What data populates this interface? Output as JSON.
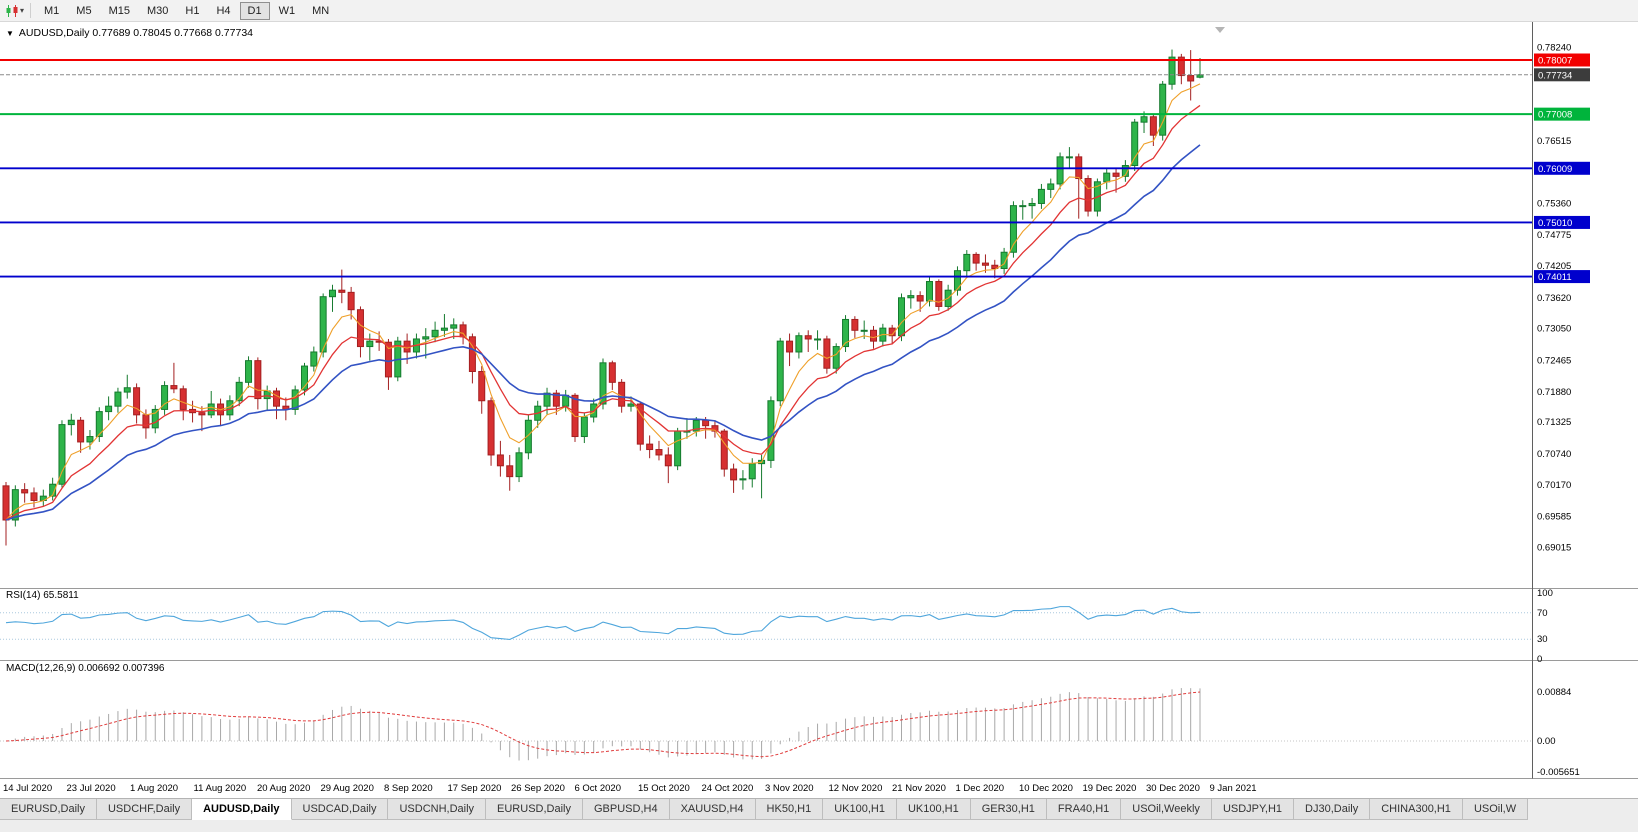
{
  "icons": {
    "chart_menu": "▼",
    "dropdown": "▾"
  },
  "toolbar": {
    "timeframes": [
      "M1",
      "M5",
      "M15",
      "M30",
      "H1",
      "H4",
      "D1",
      "W1",
      "MN"
    ],
    "active_timeframe": "D1"
  },
  "chart": {
    "header": "AUDUSD,Daily  0.77689 0.78045 0.77668 0.77734",
    "symbol": "AUDUSD",
    "period": "Daily",
    "open": "0.77689",
    "high": "0.78045",
    "low": "0.77668",
    "close": "0.77734"
  },
  "price_axis": {
    "labels": [
      {
        "text": "0.78240",
        "value": 0.7824
      },
      {
        "text": "0.76515",
        "value": 0.76515
      },
      {
        "text": "0.75360",
        "value": 0.7536
      },
      {
        "text": "0.74775",
        "value": 0.74775
      },
      {
        "text": "0.74205",
        "value": 0.74205
      },
      {
        "text": "0.73620",
        "value": 0.7362
      },
      {
        "text": "0.73050",
        "value": 0.7305
      },
      {
        "text": "0.72465",
        "value": 0.72465
      },
      {
        "text": "0.71880",
        "value": 0.7188
      },
      {
        "text": "0.71325",
        "value": 0.71325
      },
      {
        "text": "0.70740",
        "value": 0.7074
      },
      {
        "text": "0.70170",
        "value": 0.7017
      },
      {
        "text": "0.69585",
        "value": 0.69585
      },
      {
        "text": "0.69015",
        "value": 0.69015
      }
    ],
    "boxed_labels": [
      {
        "text": "0.78007",
        "value": 0.78007,
        "color": "#f20000",
        "role": "resistance-line"
      },
      {
        "text": "0.77734",
        "value": 0.77734,
        "color": "#3c3c3c",
        "role": "bid-price"
      },
      {
        "text": "0.77008",
        "value": 0.77008,
        "color": "#00b43c",
        "role": "support-line"
      },
      {
        "text": "0.76009",
        "value": 0.76009,
        "color": "#0000cd",
        "role": "support-line"
      },
      {
        "text": "0.75010",
        "value": 0.7501,
        "color": "#0000cd",
        "role": "support-line"
      },
      {
        "text": "0.74011",
        "value": 0.74011,
        "color": "#0000cd",
        "role": "support-line"
      }
    ]
  },
  "rsi_panel": {
    "label": "RSI(14) 65.5811",
    "current": 65.5811,
    "axis_labels": [
      {
        "text": "100",
        "value": 100
      },
      {
        "text": "70",
        "value": 70
      },
      {
        "text": "30",
        "value": 30
      },
      {
        "text": "0",
        "value": 0
      }
    ],
    "levels": [
      70,
      30
    ],
    "line_color": "#4fa6dc"
  },
  "macd_panel": {
    "label": "MACD(12,26,9) 0.006692 0.007396",
    "current_macd": 0.006692,
    "current_signal": 0.007396,
    "axis_labels": [
      {
        "text": "0.00884",
        "value": 0.00884
      },
      {
        "text": "0.00",
        "value": 0
      },
      {
        "text": "-0.005651",
        "value": -0.005651
      }
    ],
    "histogram_color": "#a8a8a8",
    "signal_color": "#e03c3c"
  },
  "x_axis": {
    "dates": [
      "14 Jul 2020",
      "23 Jul 2020",
      "1 Aug 2020",
      "11 Aug 2020",
      "20 Aug 2020",
      "29 Aug 2020",
      "8 Sep 2020",
      "17 Sep 2020",
      "26 Sep 2020",
      "6 Oct 2020",
      "15 Oct 2020",
      "24 Oct 2020",
      "3 Nov 2020",
      "12 Nov 2020",
      "21 Nov 2020",
      "1 Dec 2020",
      "10 Dec 2020",
      "19 Dec 2020",
      "30 Dec 2020",
      "9 Jan 2021"
    ]
  },
  "tabs": {
    "active_index": 2,
    "items": [
      {
        "label": "EURUSD,Daily"
      },
      {
        "label": "USDCHF,Daily"
      },
      {
        "label": "AUDUSD,Daily"
      },
      {
        "label": "USDCAD,Daily"
      },
      {
        "label": "USDCNH,Daily"
      },
      {
        "label": "EURUSD,Daily"
      },
      {
        "label": "GBPUSD,H4"
      },
      {
        "label": "XAUUSD,H4"
      },
      {
        "label": "HK50,H1"
      },
      {
        "label": "UK100,H1"
      },
      {
        "label": "UK100,H1"
      },
      {
        "label": "GER30,H1"
      },
      {
        "label": "FRA40,H1"
      },
      {
        "label": "USOil,Weekly"
      },
      {
        "label": "USDJPY,H1"
      },
      {
        "label": "DJ30,Daily"
      },
      {
        "label": "CHINA300,H1"
      },
      {
        "label": "USOil,W"
      }
    ]
  },
  "colors": {
    "bull": "#2eb44a",
    "bull_border": "#157a2e",
    "bear": "#d63031",
    "bear_border": "#a31f20",
    "ma_fast": "#efa02a",
    "ma_mid": "#e23434",
    "ma_slow": "#3353c4",
    "level_red": "#f20000",
    "level_green": "#00b43c",
    "level_blue": "#0000cd",
    "bid_line": "#8a8a8a"
  },
  "chart_data": {
    "type": "candlestick",
    "symbol": "AUDUSD",
    "timeframe": "Daily",
    "horizontal_lines": [
      0.78007,
      0.77008,
      0.76009,
      0.7501,
      0.74011
    ],
    "moving_averages": [
      {
        "name": "fast",
        "period": 5
      },
      {
        "name": "mid",
        "period": 10
      },
      {
        "name": "slow",
        "period": 20
      }
    ],
    "indicators": [
      {
        "name": "RSI",
        "period": 14,
        "current": 65.5811
      },
      {
        "name": "MACD",
        "fast": 12,
        "slow": 26,
        "signal": 9,
        "current_macd": 0.006692,
        "current_signal": 0.007396
      }
    ],
    "candles": [
      [
        0.7015,
        0.7022,
        0.6905,
        0.6952
      ],
      [
        0.6952,
        0.7016,
        0.694,
        0.7008
      ],
      [
        0.7008,
        0.702,
        0.6984,
        0.7002
      ],
      [
        0.7002,
        0.7012,
        0.6975,
        0.6988
      ],
      [
        0.6988,
        0.7008,
        0.6978,
        0.6996
      ],
      [
        0.6996,
        0.703,
        0.6988,
        0.7018
      ],
      [
        0.7018,
        0.7136,
        0.7012,
        0.7128
      ],
      [
        0.7128,
        0.7148,
        0.7108,
        0.7136
      ],
      [
        0.7136,
        0.7142,
        0.7076,
        0.7096
      ],
      [
        0.7096,
        0.7118,
        0.7082,
        0.7106
      ],
      [
        0.7106,
        0.716,
        0.7096,
        0.7152
      ],
      [
        0.7152,
        0.718,
        0.7136,
        0.7162
      ],
      [
        0.7162,
        0.7196,
        0.715,
        0.7188
      ],
      [
        0.7188,
        0.722,
        0.7176,
        0.7196
      ],
      [
        0.7196,
        0.7204,
        0.713,
        0.7146
      ],
      [
        0.7146,
        0.7156,
        0.7102,
        0.7122
      ],
      [
        0.7122,
        0.7164,
        0.7112,
        0.7156
      ],
      [
        0.7156,
        0.7208,
        0.7146,
        0.72
      ],
      [
        0.72,
        0.7242,
        0.7186,
        0.7194
      ],
      [
        0.7194,
        0.72,
        0.7136,
        0.7156
      ],
      [
        0.7156,
        0.7172,
        0.7132,
        0.715
      ],
      [
        0.715,
        0.7162,
        0.7116,
        0.7146
      ],
      [
        0.7146,
        0.719,
        0.714,
        0.7166
      ],
      [
        0.7166,
        0.7176,
        0.7126,
        0.7146
      ],
      [
        0.7146,
        0.7182,
        0.7136,
        0.7172
      ],
      [
        0.7172,
        0.7216,
        0.7162,
        0.7206
      ],
      [
        0.7206,
        0.7254,
        0.7196,
        0.7246
      ],
      [
        0.7246,
        0.7252,
        0.7156,
        0.7176
      ],
      [
        0.7176,
        0.72,
        0.7154,
        0.719
      ],
      [
        0.719,
        0.7196,
        0.7138,
        0.7162
      ],
      [
        0.7162,
        0.7178,
        0.7136,
        0.7156
      ],
      [
        0.7156,
        0.72,
        0.7146,
        0.7192
      ],
      [
        0.7192,
        0.7242,
        0.7182,
        0.7236
      ],
      [
        0.7236,
        0.7272,
        0.7226,
        0.7262
      ],
      [
        0.7262,
        0.737,
        0.7252,
        0.7364
      ],
      [
        0.7364,
        0.7386,
        0.7336,
        0.7376
      ],
      [
        0.7376,
        0.7414,
        0.7352,
        0.7372
      ],
      [
        0.7372,
        0.7382,
        0.7322,
        0.734
      ],
      [
        0.734,
        0.7346,
        0.7252,
        0.7272
      ],
      [
        0.7272,
        0.7296,
        0.7246,
        0.7282
      ],
      [
        0.7282,
        0.73,
        0.7264,
        0.728
      ],
      [
        0.728,
        0.7286,
        0.7192,
        0.7216
      ],
      [
        0.7216,
        0.729,
        0.7208,
        0.7282
      ],
      [
        0.7282,
        0.7296,
        0.724,
        0.7262
      ],
      [
        0.7262,
        0.7296,
        0.725,
        0.7286
      ],
      [
        0.7286,
        0.7306,
        0.725,
        0.729
      ],
      [
        0.729,
        0.7318,
        0.728,
        0.7302
      ],
      [
        0.7302,
        0.7332,
        0.729,
        0.7306
      ],
      [
        0.7306,
        0.7324,
        0.7286,
        0.7312
      ],
      [
        0.7312,
        0.7318,
        0.7276,
        0.729
      ],
      [
        0.729,
        0.7296,
        0.7204,
        0.7226
      ],
      [
        0.7226,
        0.7236,
        0.7148,
        0.7172
      ],
      [
        0.7172,
        0.7178,
        0.7052,
        0.7072
      ],
      [
        0.7072,
        0.7098,
        0.7032,
        0.7052
      ],
      [
        0.7052,
        0.7072,
        0.7006,
        0.7032
      ],
      [
        0.7032,
        0.7086,
        0.7022,
        0.7076
      ],
      [
        0.7076,
        0.7146,
        0.7064,
        0.7136
      ],
      [
        0.7136,
        0.7172,
        0.7122,
        0.7162
      ],
      [
        0.7162,
        0.7196,
        0.7146,
        0.7186
      ],
      [
        0.7186,
        0.7192,
        0.7146,
        0.7162
      ],
      [
        0.7162,
        0.7192,
        0.7152,
        0.7182
      ],
      [
        0.7182,
        0.7186,
        0.7096,
        0.7106
      ],
      [
        0.7106,
        0.715,
        0.7094,
        0.7142
      ],
      [
        0.7142,
        0.7176,
        0.7132,
        0.7166
      ],
      [
        0.7166,
        0.725,
        0.7156,
        0.7242
      ],
      [
        0.7242,
        0.7246,
        0.7192,
        0.7206
      ],
      [
        0.7206,
        0.7212,
        0.715,
        0.7162
      ],
      [
        0.7162,
        0.718,
        0.7152,
        0.7166
      ],
      [
        0.7166,
        0.717,
        0.708,
        0.7092
      ],
      [
        0.7092,
        0.7108,
        0.7066,
        0.7082
      ],
      [
        0.7082,
        0.7098,
        0.7062,
        0.7072
      ],
      [
        0.7072,
        0.7086,
        0.702,
        0.7052
      ],
      [
        0.7052,
        0.7122,
        0.7044,
        0.7116
      ],
      [
        0.7116,
        0.714,
        0.7102,
        0.7116
      ],
      [
        0.7116,
        0.7142,
        0.7106,
        0.7136
      ],
      [
        0.7136,
        0.7142,
        0.7102,
        0.7126
      ],
      [
        0.7126,
        0.7136,
        0.7104,
        0.7116
      ],
      [
        0.7116,
        0.712,
        0.7032,
        0.7046
      ],
      [
        0.7046,
        0.7056,
        0.7002,
        0.7026
      ],
      [
        0.7026,
        0.7044,
        0.7008,
        0.7028
      ],
      [
        0.7028,
        0.7066,
        0.7012,
        0.7056
      ],
      [
        0.7056,
        0.7072,
        0.6992,
        0.7062
      ],
      [
        0.7062,
        0.718,
        0.7048,
        0.7172
      ],
      [
        0.7172,
        0.7288,
        0.7162,
        0.7282
      ],
      [
        0.7282,
        0.7296,
        0.7236,
        0.7262
      ],
      [
        0.7262,
        0.7298,
        0.725,
        0.7292
      ],
      [
        0.7292,
        0.7302,
        0.7262,
        0.7286
      ],
      [
        0.7286,
        0.7302,
        0.7266,
        0.7286
      ],
      [
        0.7286,
        0.7292,
        0.7222,
        0.7232
      ],
      [
        0.7232,
        0.7278,
        0.7222,
        0.7272
      ],
      [
        0.7272,
        0.733,
        0.7262,
        0.7322
      ],
      [
        0.7322,
        0.7328,
        0.7288,
        0.7302
      ],
      [
        0.7302,
        0.732,
        0.7286,
        0.7302
      ],
      [
        0.7302,
        0.731,
        0.7268,
        0.7282
      ],
      [
        0.7282,
        0.7314,
        0.7272,
        0.7306
      ],
      [
        0.7306,
        0.7312,
        0.7276,
        0.7292
      ],
      [
        0.7292,
        0.737,
        0.7282,
        0.7362
      ],
      [
        0.7362,
        0.7376,
        0.7342,
        0.7366
      ],
      [
        0.7366,
        0.7374,
        0.7336,
        0.7356
      ],
      [
        0.7356,
        0.74,
        0.7346,
        0.7392
      ],
      [
        0.7392,
        0.7396,
        0.7338,
        0.7346
      ],
      [
        0.7346,
        0.7386,
        0.7338,
        0.7376
      ],
      [
        0.7376,
        0.742,
        0.7366,
        0.7412
      ],
      [
        0.7412,
        0.745,
        0.7402,
        0.7442
      ],
      [
        0.7442,
        0.7446,
        0.7412,
        0.7426
      ],
      [
        0.7426,
        0.7442,
        0.7408,
        0.7422
      ],
      [
        0.7422,
        0.7432,
        0.7398,
        0.7416
      ],
      [
        0.7416,
        0.7454,
        0.7406,
        0.7446
      ],
      [
        0.7446,
        0.754,
        0.7436,
        0.7532
      ],
      [
        0.7532,
        0.7542,
        0.7506,
        0.7532
      ],
      [
        0.7532,
        0.7546,
        0.7508,
        0.7536
      ],
      [
        0.7536,
        0.7572,
        0.7526,
        0.7562
      ],
      [
        0.7562,
        0.7582,
        0.7546,
        0.7572
      ],
      [
        0.7572,
        0.763,
        0.7562,
        0.7622
      ],
      [
        0.7622,
        0.764,
        0.7602,
        0.7622
      ],
      [
        0.7622,
        0.7628,
        0.7508,
        0.7582
      ],
      [
        0.7582,
        0.7588,
        0.7512,
        0.7522
      ],
      [
        0.7522,
        0.7582,
        0.7512,
        0.7576
      ],
      [
        0.7576,
        0.76,
        0.7562,
        0.7592
      ],
      [
        0.7592,
        0.7602,
        0.7556,
        0.7586
      ],
      [
        0.7586,
        0.7616,
        0.7576,
        0.7606
      ],
      [
        0.7606,
        0.7692,
        0.7596,
        0.7686
      ],
      [
        0.7686,
        0.7706,
        0.7666,
        0.7696
      ],
      [
        0.7696,
        0.7702,
        0.7642,
        0.7662
      ],
      [
        0.7662,
        0.7762,
        0.7652,
        0.7756
      ],
      [
        0.7756,
        0.782,
        0.7746,
        0.7806
      ],
      [
        0.7806,
        0.7812,
        0.7756,
        0.7772
      ],
      [
        0.7772,
        0.7819,
        0.7726,
        0.7762
      ],
      [
        0.77689,
        0.78045,
        0.77668,
        0.77734
      ]
    ]
  }
}
